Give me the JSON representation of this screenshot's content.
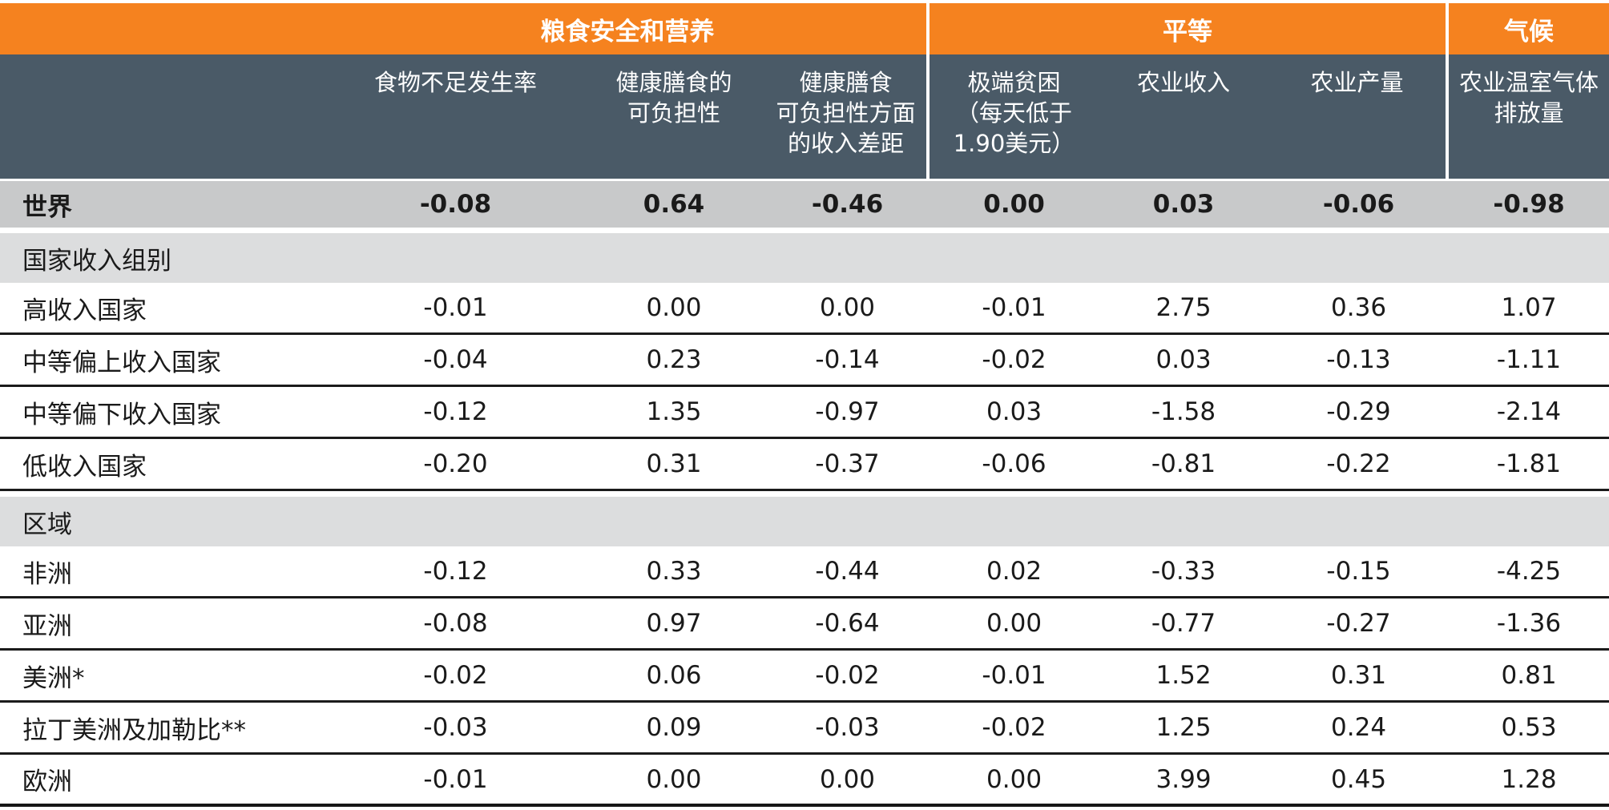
{
  "table": {
    "title": "indicator-impact-table",
    "groups": [
      {
        "label": "粮食安全和营养",
        "span": 3
      },
      {
        "label": "平等",
        "span": 3
      },
      {
        "label": "气候",
        "span": 1
      }
    ],
    "columns": [
      {
        "label": "食物不足发生率"
      },
      {
        "label": "健康膳食的\n可负担性"
      },
      {
        "label": "健康膳食\n可负担性方面\n的收入差距"
      },
      {
        "label": "极端贫困\n（每天低于\n1.90美元）"
      },
      {
        "label": "农业收入"
      },
      {
        "label": "农业产量"
      },
      {
        "label": "农业温室气体\n排放量"
      }
    ],
    "rows": [
      {
        "type": "world",
        "label": "世界",
        "values": [
          "-0.08",
          "0.64",
          "-0.46",
          "0.00",
          "0.03",
          "-0.06",
          "-0.98"
        ]
      },
      {
        "type": "section",
        "label": "国家收入组别"
      },
      {
        "type": "data",
        "label": "高收入国家",
        "values": [
          "-0.01",
          "0.00",
          "0.00",
          "-0.01",
          "2.75",
          "0.36",
          "1.07"
        ]
      },
      {
        "type": "data",
        "label": "中等偏上收入国家",
        "values": [
          "-0.04",
          "0.23",
          "-0.14",
          "-0.02",
          "0.03",
          "-0.13",
          "-1.11"
        ]
      },
      {
        "type": "data",
        "label": "中等偏下收入国家",
        "values": [
          "-0.12",
          "1.35",
          "-0.97",
          "0.03",
          "-1.58",
          "-0.29",
          "-2.14"
        ]
      },
      {
        "type": "data",
        "label": "低收入国家",
        "values": [
          "-0.20",
          "0.31",
          "-0.37",
          "-0.06",
          "-0.81",
          "-0.22",
          "-1.81"
        ]
      },
      {
        "type": "section",
        "label": "区域"
      },
      {
        "type": "data",
        "label": "非洲",
        "values": [
          "-0.12",
          "0.33",
          "-0.44",
          "0.02",
          "-0.33",
          "-0.15",
          "-4.25"
        ]
      },
      {
        "type": "data",
        "label": "亚洲",
        "values": [
          "-0.08",
          "0.97",
          "-0.64",
          "0.00",
          "-0.77",
          "-0.27",
          "-1.36"
        ]
      },
      {
        "type": "data",
        "label": "美洲*",
        "values": [
          "-0.02",
          "0.06",
          "-0.02",
          "-0.01",
          "1.52",
          "0.31",
          "0.81"
        ]
      },
      {
        "type": "data",
        "label": "拉丁美洲及加勒比**",
        "values": [
          "-0.03",
          "0.09",
          "-0.03",
          "-0.02",
          "1.25",
          "0.24",
          "0.53"
        ]
      },
      {
        "type": "data",
        "label": "欧洲",
        "values": [
          "-0.01",
          "0.00",
          "0.00",
          "0.00",
          "3.99",
          "0.45",
          "1.28"
        ]
      }
    ],
    "colors": {
      "group_band": "#F5821F",
      "header_band": "#4A5A67",
      "world_row_bg": "#C8C9CA",
      "section_row_bg": "#DCDDDE",
      "rule_dark": "#1B1B1B"
    }
  }
}
